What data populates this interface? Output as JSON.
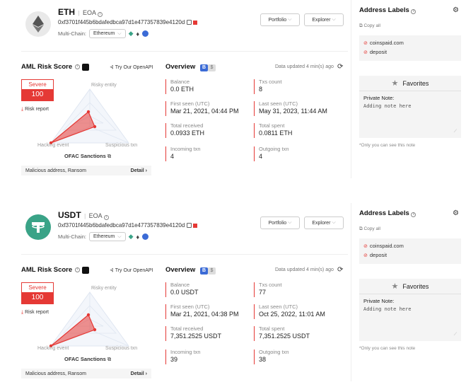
{
  "panels": [
    {
      "coin": "ETH",
      "account_type": "EOA",
      "address": "0xf3701f445b6bdafedbca97d1e477357839e4120d",
      "multichain_label": "Multi-Chain:",
      "chain": "Ethereum",
      "portfolio": "Portfolio",
      "explorer": "Explorer",
      "aml_title": "AML Risk Score",
      "openapi": "Try Our OpenAPI",
      "severity": "Severe",
      "score": "100",
      "risk_report": "Risk report",
      "radar_labels": {
        "risky": "Risky entity",
        "hacking": "Hacking event",
        "suspicious": "Suspicious txn"
      },
      "ofac": "OFAC Sanctions",
      "malicious": "Malicious address, Ransom",
      "detail": "Detail",
      "overview_title": "Overview",
      "badge_b": "B",
      "badge_s": "$",
      "updated": "Data updated 4 min(s) ago",
      "stats": {
        "balance": {
          "label": "Balance",
          "value": "0.0 ETH"
        },
        "txs": {
          "label": "Txs count",
          "value": "8"
        },
        "first_seen": {
          "label": "First seen (UTC)",
          "value": "Mar 21, 2021, 04:44 PM"
        },
        "last_seen": {
          "label": "Last seen (UTC)",
          "value": "May 31, 2023, 11:44 AM"
        },
        "received": {
          "label": "Total received",
          "value": "0.0933 ETH"
        },
        "spent": {
          "label": "Total spent",
          "value": "0.0811 ETH"
        },
        "incoming": {
          "label": "Incoming txn",
          "value": "4"
        },
        "outgoing": {
          "label": "Outgoing txn",
          "value": "4"
        }
      },
      "address_labels_title": "Address Labels",
      "copy_all": "Copy all",
      "labels": [
        "coinspaid.com",
        "deposit"
      ],
      "favorites": "Favorites",
      "private_note_label": "Private Note:",
      "note_placeholder": "Adding note here",
      "only_you": "*Only you can see this note"
    },
    {
      "coin": "USDT",
      "account_type": "EOA",
      "address": "0xf3701f445b6bdafedbca97d1e477357839e4120d",
      "multichain_label": "Multi-Chain:",
      "chain": "Ethereum",
      "portfolio": "Portfolio",
      "explorer": "Explorer",
      "aml_title": "AML Risk Score",
      "openapi": "Try Our OpenAPI",
      "severity": "Severe",
      "score": "100",
      "risk_report": "Risk report",
      "radar_labels": {
        "risky": "Risky entity",
        "hacking": "Hacking event",
        "suspicious": "Suspicious txn"
      },
      "ofac": "OFAC Sanctions",
      "malicious": "Malicious address, Ransom",
      "detail": "Detail",
      "overview_title": "Overview",
      "badge_b": "B",
      "badge_s": "$",
      "updated": "Data updated 4 min(s) ago",
      "stats": {
        "balance": {
          "label": "Balance",
          "value": "0.0 USDT"
        },
        "txs": {
          "label": "Txs count",
          "value": "77"
        },
        "first_seen": {
          "label": "First seen (UTC)",
          "value": "Mar 21, 2021, 04:38 PM"
        },
        "last_seen": {
          "label": "Last seen (UTC)",
          "value": "Oct 25, 2022, 11:01 AM"
        },
        "received": {
          "label": "Total received",
          "value": "7,351.2525 USDT"
        },
        "spent": {
          "label": "Total spent",
          "value": "7,351.2525 USDT"
        },
        "incoming": {
          "label": "Incoming txn",
          "value": "39"
        },
        "outgoing": {
          "label": "Outgoing txn",
          "value": "38"
        }
      },
      "address_labels_title": "Address Labels",
      "copy_all": "Copy all",
      "labels": [
        "coinspaid.com",
        "deposit"
      ],
      "favorites": "Favorites",
      "private_note_label": "Private Note:",
      "note_placeholder": "Adding note here",
      "only_you": "*Only you can see this note"
    }
  ],
  "colors": {
    "accent": "#e53935",
    "badge_blue": "#3b6bd6",
    "usdt": "#3aa387"
  }
}
